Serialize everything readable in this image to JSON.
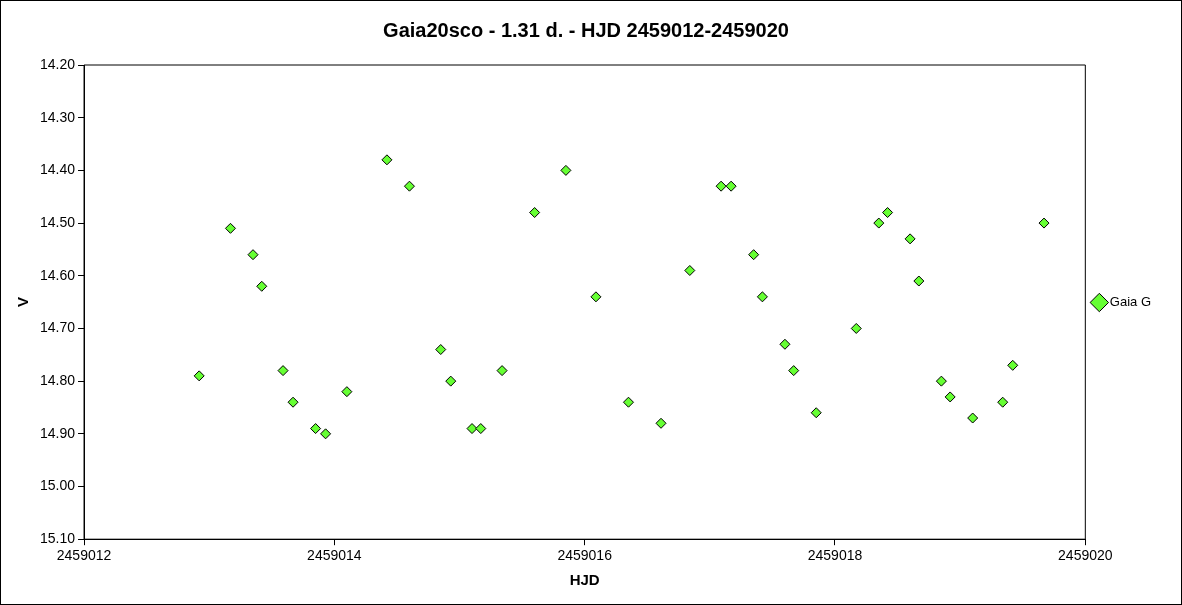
{
  "chart_data": {
    "type": "scatter",
    "title": "Gaia20sco - 1.31 d. - HJD 2459012-2459020",
    "xlabel": "HJD",
    "ylabel": "V",
    "series": [
      {
        "name": "Gaia G",
        "color": "#66ff33",
        "marker": "diamond",
        "x": [
          2459012.92,
          2459013.17,
          2459013.35,
          2459013.42,
          2459013.59,
          2459013.67,
          2459013.85,
          2459013.93,
          2459014.1,
          2459014.42,
          2459014.6,
          2459014.85,
          2459014.93,
          2459015.1,
          2459015.17,
          2459015.34,
          2459015.6,
          2459015.85,
          2459016.09,
          2459016.35,
          2459016.61,
          2459016.84,
          2459017.09,
          2459017.17,
          2459017.35,
          2459017.42,
          2459017.6,
          2459017.67,
          2459017.85,
          2459018.17,
          2459018.35,
          2459018.42,
          2459018.6,
          2459018.67,
          2459018.85,
          2459018.92,
          2459019.1,
          2459019.34,
          2459019.42,
          2459019.67
        ],
        "values": [
          14.79,
          14.51,
          14.56,
          14.62,
          14.78,
          14.84,
          14.89,
          14.9,
          14.82,
          14.38,
          14.43,
          14.74,
          14.8,
          14.89,
          14.89,
          14.78,
          14.48,
          14.4,
          14.64,
          14.84,
          14.88,
          14.59,
          14.43,
          14.43,
          14.56,
          14.64,
          14.73,
          14.78,
          14.86,
          14.7,
          14.5,
          14.48,
          14.53,
          14.61,
          14.8,
          14.83,
          14.87,
          14.84,
          14.77,
          14.5
        ]
      }
    ],
    "xlim": [
      2459012,
      2459020
    ],
    "xticks": [
      2459012,
      2459014,
      2459016,
      2459018,
      2459020
    ],
    "ylim": [
      15.1,
      14.2
    ],
    "yticks": [
      {
        "value": 14.2,
        "label": "14.20"
      },
      {
        "value": 14.3,
        "label": "14.30"
      },
      {
        "value": 14.4,
        "label": "14.40"
      },
      {
        "value": 14.5,
        "label": "14.50"
      },
      {
        "value": 14.6,
        "label": "14.60"
      },
      {
        "value": 14.7,
        "label": "14.70"
      },
      {
        "value": 14.8,
        "label": "14.80"
      },
      {
        "value": 14.9,
        "label": "14.90"
      },
      {
        "value": 15.0,
        "label": "15.00"
      },
      {
        "value": 15.1,
        "label": "15.10"
      }
    ],
    "grid": false,
    "legend": "right"
  }
}
